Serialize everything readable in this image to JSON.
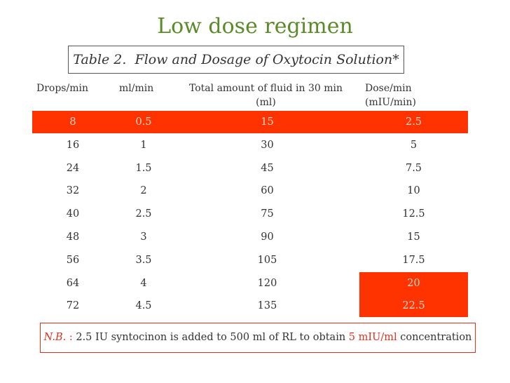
{
  "title": "Low dose regimen",
  "caption": "Table 2.  Flow and Dosage of Oxytocin Solution*",
  "table": {
    "header": [
      [
        "Drops/min"
      ],
      [
        "ml/min"
      ],
      [
        "Total amount of fluid in 30 min",
        "(ml)"
      ],
      [
        "Dose/min",
        "(mIU/min)"
      ]
    ],
    "rows": [
      [
        "8",
        "0.5",
        "15",
        "2.5"
      ],
      [
        "16",
        "1",
        "30",
        "5"
      ],
      [
        "24",
        "1.5",
        "45",
        "7.5"
      ],
      [
        "32",
        "2",
        "60",
        "10"
      ],
      [
        "40",
        "2.5",
        "75",
        "12.5"
      ],
      [
        "48",
        "3",
        "90",
        "15"
      ],
      [
        "56",
        "3.5",
        "105",
        "17.5"
      ],
      [
        "64",
        "4",
        "120",
        "20"
      ],
      [
        "72",
        "4.5",
        "135",
        "22.5"
      ]
    ]
  },
  "note": {
    "label": "N.B.",
    "separator": " : ",
    "text": "2.5 IU syntocinon is added to 500 ml of RL to obtain ",
    "highlight": "5 mIU/ml",
    "end": " concentration"
  }
}
